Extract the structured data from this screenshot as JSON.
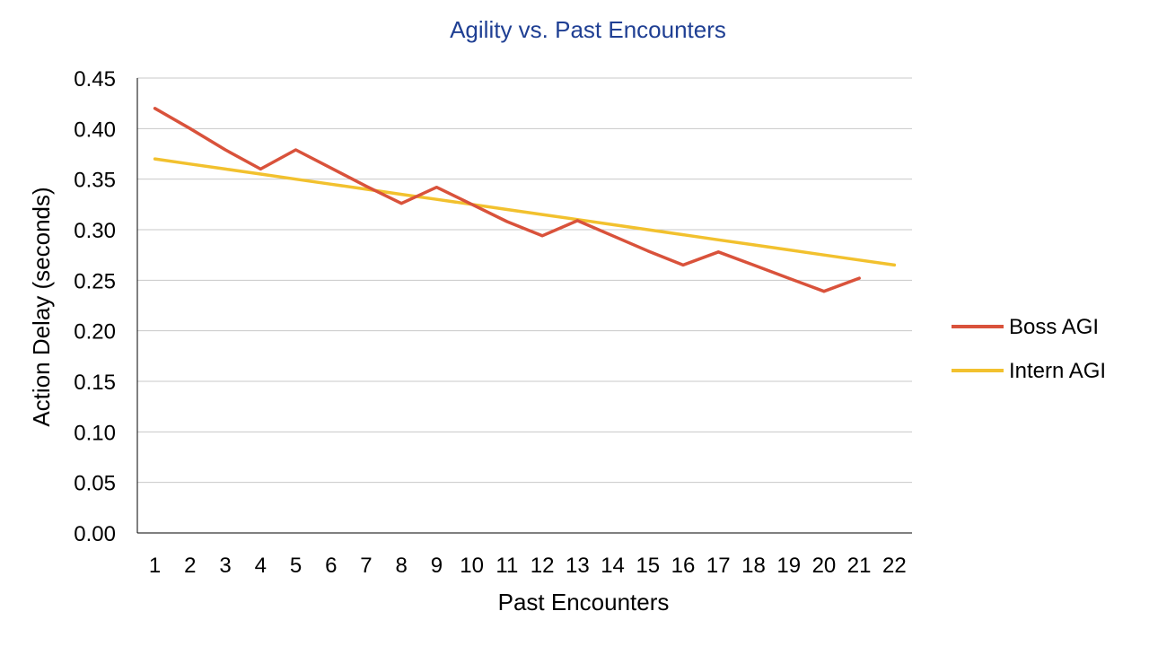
{
  "chart_data": {
    "type": "line",
    "title": "Agility vs. Past Encounters",
    "xlabel": "Past Encounters",
    "ylabel": "Action Delay (seconds)",
    "categories": [
      "1",
      "2",
      "3",
      "4",
      "5",
      "6",
      "7",
      "8",
      "9",
      "10",
      "11",
      "12",
      "13",
      "14",
      "15",
      "16",
      "17",
      "18",
      "19",
      "20",
      "21",
      "22"
    ],
    "ylim": [
      0,
      0.45
    ],
    "yticks": [
      "0.00",
      "0.05",
      "0.10",
      "0.15",
      "0.20",
      "0.25",
      "0.30",
      "0.35",
      "0.40",
      "0.45"
    ],
    "grid": true,
    "legend_position": "right",
    "series": [
      {
        "name": "Boss AGI",
        "color": "#d9523b",
        "values": [
          0.42,
          0.4,
          0.379,
          0.36,
          0.379,
          0.361,
          0.343,
          0.326,
          0.342,
          0.325,
          0.308,
          0.294,
          0.309,
          0.294,
          0.279,
          0.265,
          0.278,
          0.265,
          0.252,
          0.239,
          0.252,
          null
        ]
      },
      {
        "name": "Intern AGI",
        "color": "#f2c12e",
        "values": [
          0.37,
          0.365,
          0.36,
          0.355,
          0.35,
          0.345,
          0.34,
          0.335,
          0.33,
          0.325,
          0.32,
          0.315,
          0.31,
          0.305,
          0.3,
          0.295,
          0.29,
          0.285,
          0.28,
          0.275,
          0.27,
          0.265
        ]
      }
    ],
    "colors": {
      "title": "#1f3f93",
      "grid": "#c8c8c8",
      "axis": "#000000"
    }
  }
}
